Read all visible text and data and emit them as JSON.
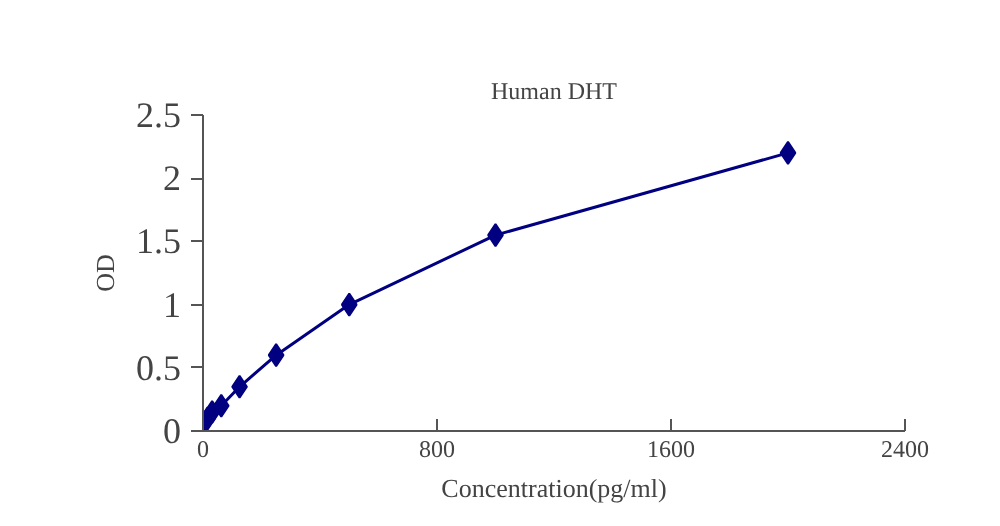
{
  "chart_data": {
    "type": "line",
    "title": "Human DHT",
    "xlabel": "Concentration(pg/ml)",
    "ylabel": "OD",
    "x": [
      0,
      15.6,
      31.25,
      62.5,
      125,
      250,
      500,
      1000,
      2000
    ],
    "series": [
      {
        "color": "#000080",
        "values": [
          0.05,
          0.1,
          0.15,
          0.2,
          0.35,
          0.6,
          1.0,
          1.55,
          2.2
        ]
      }
    ],
    "xlim": [
      0,
      2400
    ],
    "xticks": [
      0,
      800,
      1600,
      2400
    ],
    "ylim": [
      0,
      2.5
    ],
    "yticks": [
      0,
      0.5,
      1,
      1.5,
      2,
      2.5
    ],
    "marker": "diamond",
    "line_style": "solid",
    "grid": false
  }
}
